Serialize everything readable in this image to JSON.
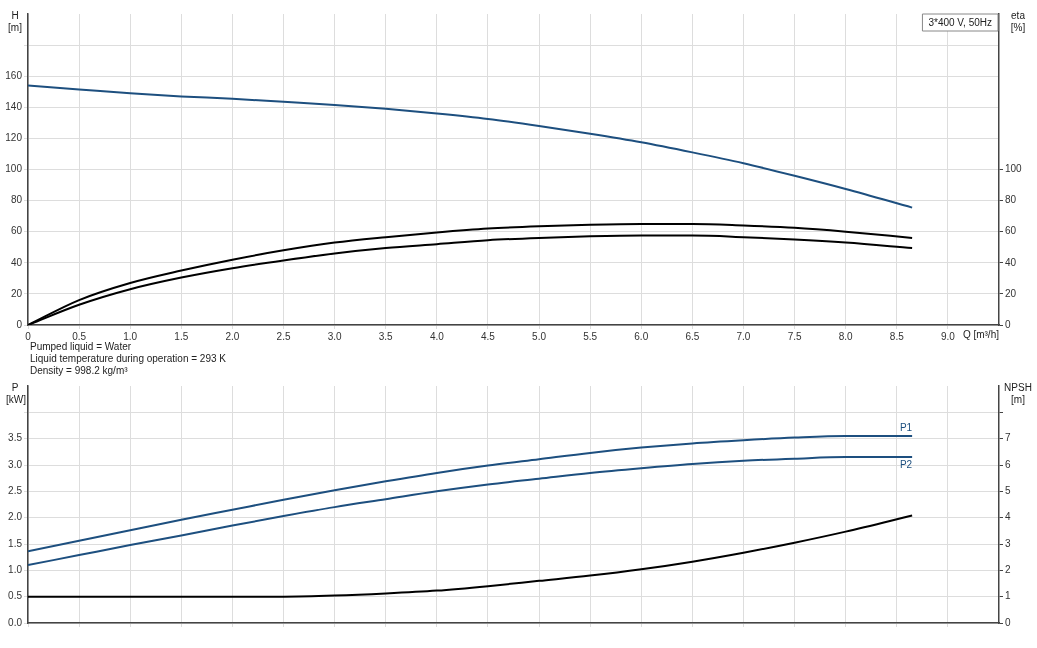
{
  "chart_data": [
    {
      "type": "line",
      "title": "3*400 V, 50Hz",
      "xlabel": "Q [m³/h]",
      "ylabel": "H [m]",
      "y2label": "eta [%]",
      "annotations": [
        "Pumped liquid = Water",
        "Liquid temperature during operation = 293 K",
        "Density = 998.2 kg/m³"
      ],
      "x": [
        0,
        0.5,
        1,
        1.5,
        2,
        2.5,
        3,
        3.5,
        4,
        4.5,
        5,
        5.5,
        6,
        6.5,
        7,
        7.5,
        8,
        8.65
      ],
      "series": [
        {
          "color": "#1d4f7f",
          "values": [
            154,
            151.5,
            149,
            147,
            145.5,
            143.5,
            141.5,
            139,
            136,
            132.5,
            128,
            123,
            117.5,
            111,
            104,
            96,
            87.5,
            75.5
          ]
        },
        {
          "color": "#000000",
          "axis": "y2",
          "values": [
            0,
            16,
            27,
            35,
            42,
            48,
            53,
            56.5,
            59.5,
            62,
            63.5,
            64.5,
            65,
            65,
            64,
            62.5,
            60,
            56
          ]
        },
        {
          "color": "#000000",
          "axis": "y2",
          "values": [
            0,
            13,
            23,
            30.5,
            36.5,
            41.5,
            46,
            49.5,
            52,
            54.5,
            56,
            57,
            57.5,
            57.5,
            56.5,
            55,
            53,
            49.5
          ]
        }
      ],
      "xlim": [
        0,
        9.5
      ],
      "xticks": [
        0,
        0.5,
        {
          "value": 1,
          "label": "1.0"
        },
        1.5,
        {
          "value": 2,
          "label": "2.0"
        },
        2.5,
        {
          "value": 3,
          "label": "3.0"
        },
        3.5,
        {
          "value": 4,
          "label": "4.0"
        },
        4.5,
        {
          "value": 5,
          "label": "5.0"
        },
        5.5,
        {
          "value": 6,
          "label": "6.0"
        },
        6.5,
        {
          "value": 7,
          "label": "7.0"
        },
        7.5,
        {
          "value": 8,
          "label": "8.0"
        },
        8.5,
        {
          "value": 9,
          "label": "9.0"
        }
      ],
      "ylim": [
        0,
        200
      ],
      "yticks": [
        0,
        20,
        40,
        60,
        80,
        100,
        120,
        140,
        160,
        {
          "value": 180,
          "label": null
        }
      ],
      "y2lim": [
        0,
        200
      ],
      "y2ticks": [
        0,
        20,
        40,
        60,
        80,
        100
      ],
      "grid": true,
      "legend": false
    },
    {
      "type": "line",
      "ylabel": "P [kW]",
      "y2label": "NPSH [m]",
      "x": [
        0,
        0.5,
        1,
        1.5,
        2,
        2.5,
        3,
        3.5,
        4,
        4.5,
        5,
        5.5,
        6,
        6.5,
        7,
        7.5,
        8,
        8.65
      ],
      "series": [
        {
          "name": "P1",
          "color": "#1d4f7f",
          "values": [
            1.36,
            1.56,
            1.76,
            1.96,
            2.15,
            2.34,
            2.52,
            2.69,
            2.85,
            2.99,
            3.11,
            3.23,
            3.33,
            3.41,
            3.47,
            3.52,
            3.55,
            3.55
          ]
        },
        {
          "name": "P2",
          "color": "#1d4f7f",
          "values": [
            1.1,
            1.29,
            1.48,
            1.66,
            1.85,
            2.03,
            2.2,
            2.35,
            2.5,
            2.63,
            2.74,
            2.85,
            2.94,
            3.02,
            3.08,
            3.12,
            3.15,
            3.15
          ]
        },
        {
          "color": "#000000",
          "axis": "y2",
          "values": [
            1,
            1,
            1,
            1,
            1,
            1,
            1.04,
            1.12,
            1.23,
            1.4,
            1.6,
            1.8,
            2.04,
            2.33,
            2.67,
            3.05,
            3.47,
            4.08
          ]
        }
      ],
      "xlim": [
        0,
        9.5
      ],
      "xticks": [
        0,
        0.5,
        1,
        1.5,
        2,
        2.5,
        3,
        3.5,
        4,
        4.5,
        5,
        5.5,
        6,
        6.5,
        7,
        7.5,
        8,
        8.5,
        9
      ],
      "ylim": [
        0,
        4.5
      ],
      "yticks": [
        {
          "value": 0,
          "label": "0.0"
        },
        0.5,
        {
          "value": 1,
          "label": "1.0"
        },
        1.5,
        {
          "value": 2,
          "label": "2.0"
        },
        2.5,
        {
          "value": 3,
          "label": "3.0"
        },
        3.5,
        {
          "value": 4,
          "label": null
        }
      ],
      "y2lim": [
        0,
        9
      ],
      "y2ticks": [
        0,
        1,
        2,
        3,
        4,
        5,
        6,
        7,
        {
          "value": 8,
          "label": null
        }
      ],
      "tick_labels": "y",
      "grid": true,
      "legend": false
    }
  ]
}
